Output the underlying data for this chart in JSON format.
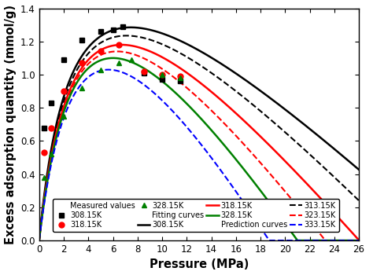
{
  "xlabel": "Pressure (MPa)",
  "ylabel": "Excess adsorption quantity (mmol/g)",
  "xlim": [
    0,
    26
  ],
  "ylim": [
    0.0,
    1.4
  ],
  "xticks": [
    0,
    2,
    4,
    6,
    8,
    10,
    12,
    14,
    16,
    18,
    20,
    22,
    24,
    26
  ],
  "yticks": [
    0.0,
    0.2,
    0.4,
    0.6,
    0.8,
    1.0,
    1.2,
    1.4
  ],
  "measured_308": {
    "x": [
      0.4,
      1.0,
      2.0,
      3.5,
      5.0,
      6.0,
      6.8,
      8.5,
      10.0,
      11.5
    ],
    "y": [
      0.68,
      0.83,
      1.09,
      1.21,
      1.26,
      1.27,
      1.29,
      1.01,
      0.97,
      0.96
    ],
    "color": "black",
    "marker": "s",
    "ms": 5
  },
  "measured_318": {
    "x": [
      0.4,
      1.0,
      2.0,
      3.5,
      5.0,
      6.5,
      8.5,
      10.0,
      11.5
    ],
    "y": [
      0.53,
      0.68,
      0.9,
      1.07,
      1.14,
      1.18,
      1.02,
      1.0,
      0.99
    ],
    "color": "red",
    "marker": "o",
    "ms": 5
  },
  "measured_328": {
    "x": [
      0.4,
      1.0,
      2.0,
      3.5,
      5.0,
      6.5,
      7.5,
      10.0,
      11.5
    ],
    "y": [
      0.38,
      0.52,
      0.75,
      0.92,
      1.03,
      1.07,
      1.09,
      1.0,
      0.98
    ],
    "color": "green",
    "marker": "^",
    "ms": 5
  },
  "curve_params": {
    "308": {
      "qmax": 3.5,
      "k": 0.32,
      "rho": 0.098,
      "color": "black",
      "ls": "-",
      "lw": 1.8
    },
    "313": {
      "qmax": 3.2,
      "k": 0.3,
      "rho": 0.098,
      "color": "black",
      "ls": "--",
      "lw": 1.5
    },
    "318": {
      "qmax": 2.9,
      "k": 0.28,
      "rho": 0.098,
      "color": "red",
      "ls": "-",
      "lw": 1.8
    },
    "323": {
      "qmax": 2.65,
      "k": 0.265,
      "rho": 0.098,
      "color": "red",
      "ls": "--",
      "lw": 1.5
    },
    "328": {
      "qmax": 2.45,
      "k": 0.25,
      "rho": 0.098,
      "color": "green",
      "ls": "-",
      "lw": 1.8
    },
    "333": {
      "qmax": 2.25,
      "k": 0.235,
      "rho": 0.098,
      "color": "blue",
      "ls": "--",
      "lw": 1.5
    }
  },
  "legend_fontsize": 7.0,
  "tick_fontsize": 8.5,
  "label_fontsize": 10.5
}
